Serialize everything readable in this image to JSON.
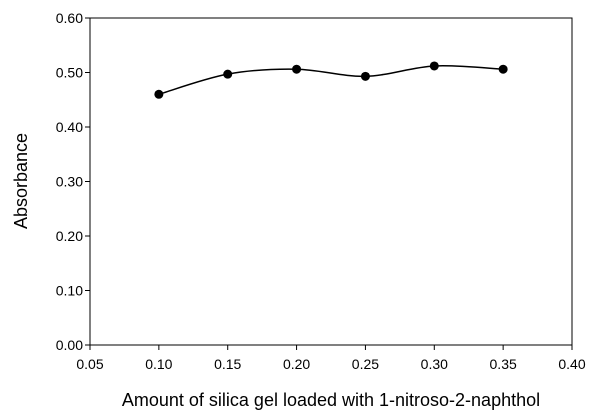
{
  "chart_data": {
    "type": "line",
    "title": "",
    "xlabel": "Amount of silica gel loaded with 1-nitroso-2-naphthol",
    "ylabel": "Absorbance",
    "xlim": [
      0.05,
      0.4
    ],
    "ylim": [
      0.0,
      0.6
    ],
    "x_ticks": [
      "0.05",
      "0.10",
      "0.15",
      "0.20",
      "0.25",
      "0.30",
      "0.35",
      "0.40"
    ],
    "y_ticks": [
      "0.00",
      "0.10",
      "0.20",
      "0.30",
      "0.40",
      "0.50",
      "0.60"
    ],
    "grid": false,
    "legend": "none",
    "series": [
      {
        "x": [
          0.1,
          0.15,
          0.2,
          0.25,
          0.3,
          0.35
        ],
        "values": [
          0.46,
          0.497,
          0.506,
          0.493,
          0.512,
          0.506
        ],
        "color": "#000000",
        "marker": "filled-circle",
        "smooth": true
      }
    ]
  }
}
